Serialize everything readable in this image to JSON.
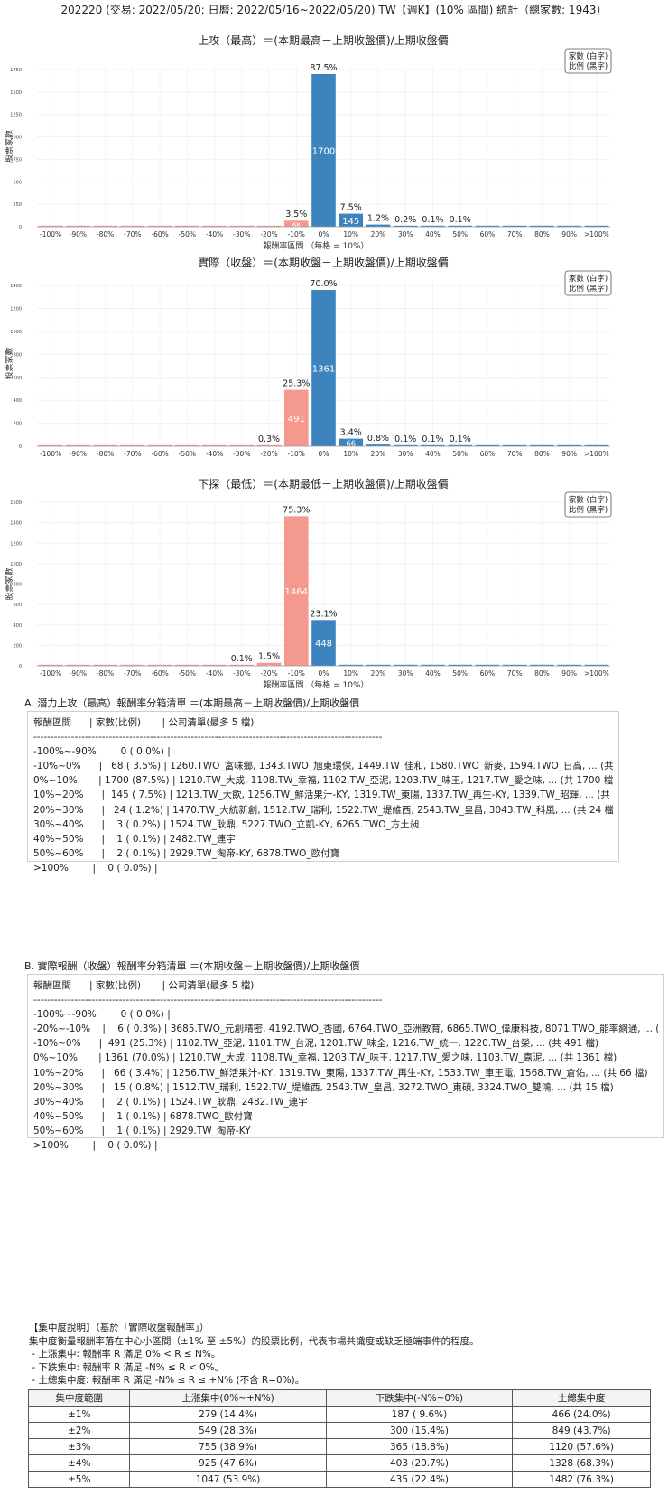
{
  "page": {
    "title": "202220 (交易: 2022/05/20; 日曆: 2022/05/16~2022/05/20) TW【週K】(10% 區間) 統計（總家數: 1943）"
  },
  "chart_data": [
    {
      "type": "bar",
      "title": "上攻（最高）＝(本期最高－上期收盤價)/上期收盤價",
      "xlabel": "報酬率區間 （每格 = 10%）",
      "ylabel": "股票家數",
      "legend": [
        "家數 (白字)",
        "比例 (黑字)"
      ],
      "legend_position": "top-right",
      "categories": [
        "-100%",
        "-90%",
        "-80%",
        "-70%",
        "-60%",
        "-50%",
        "-40%",
        "-30%",
        "-20%",
        "-10%",
        "0%",
        "10%",
        "20%",
        "30%",
        "40%",
        "50%",
        "60%",
        "70%",
        "80%",
        "90%",
        ">100%"
      ],
      "values": [
        0,
        0,
        0,
        0,
        0,
        0,
        0,
        0,
        0,
        68,
        1700,
        145,
        24,
        3,
        1,
        2,
        0,
        0,
        0,
        0,
        0
      ],
      "pct_labels": [
        "",
        "",
        "",
        "",
        "",
        "",
        "",
        "",
        "",
        "3.5%",
        "87.5%",
        "7.5%",
        "1.2%",
        "0.2%",
        "0.1%",
        "0.1%",
        "",
        "",
        "",
        "",
        ""
      ],
      "colors": {
        "negative": "#f4998d",
        "positive": "#3d84be"
      },
      "yticks": [
        0,
        250,
        500,
        750,
        1000,
        1250,
        1500,
        1750
      ],
      "ylim": [
        0,
        1790
      ],
      "grid": true
    },
    {
      "type": "bar",
      "title": "實際（收盤）＝(本期收盤－上期收盤價)/上期收盤價",
      "xlabel": "",
      "ylabel": "股票家數",
      "legend": [
        "家數 (白字)",
        "比例 (黑字)"
      ],
      "legend_position": "top-right",
      "categories": [
        "-100%",
        "-90%",
        "-80%",
        "-70%",
        "-60%",
        "-50%",
        "-40%",
        "-30%",
        "-20%",
        "-10%",
        "0%",
        "10%",
        "20%",
        "30%",
        "40%",
        "50%",
        "60%",
        "70%",
        "80%",
        "90%",
        ">100%"
      ],
      "values": [
        0,
        0,
        0,
        0,
        0,
        0,
        0,
        0,
        6,
        491,
        1361,
        66,
        15,
        2,
        1,
        1,
        0,
        0,
        0,
        0,
        0
      ],
      "pct_labels": [
        "",
        "",
        "",
        "",
        "",
        "",
        "",
        "",
        "0.3%",
        "25.3%",
        "70.0%",
        "3.4%",
        "0.8%",
        "0.1%",
        "0.1%",
        "0.1%",
        "",
        "",
        "",
        "",
        ""
      ],
      "colors": {
        "negative": "#f4998d",
        "positive": "#3d84be"
      },
      "yticks": [
        0,
        200,
        400,
        600,
        800,
        1000,
        1200,
        1400
      ],
      "ylim": [
        0,
        1440
      ],
      "grid": true
    },
    {
      "type": "bar",
      "title": "下探（最低）＝(本期最低－上期收盤價)/上期收盤價",
      "xlabel": "報酬率區間 （每格 = 10%）",
      "ylabel": "股票家數",
      "legend": [
        "家數 (白字)",
        "比例 (黑字)"
      ],
      "legend_position": "top-right",
      "categories": [
        "-100%",
        "-90%",
        "-80%",
        "-70%",
        "-60%",
        "-50%",
        "-40%",
        "-30%",
        "-20%",
        "-10%",
        "0%",
        "10%",
        "20%",
        "30%",
        "40%",
        "50%",
        "60%",
        "70%",
        "80%",
        "90%",
        ">100%"
      ],
      "values": [
        0,
        0,
        0,
        0,
        0,
        0,
        0,
        2,
        29,
        1464,
        448,
        0,
        0,
        0,
        0,
        0,
        0,
        0,
        0,
        0,
        0
      ],
      "pct_labels": [
        "",
        "",
        "",
        "",
        "",
        "",
        "",
        "0.1%",
        "1.5%",
        "75.3%",
        "23.1%",
        "",
        "",
        "",
        "",
        "",
        "",
        "",
        "",
        "",
        ""
      ],
      "colors": {
        "negative": "#f4998d",
        "positive": "#3d84be"
      },
      "yticks": [
        0,
        200,
        400,
        600,
        800,
        1000,
        1200,
        1400,
        1600
      ],
      "ylim": [
        0,
        1600
      ],
      "grid": true
    }
  ],
  "sectionA": {
    "title": "A. 潛力上攻（最高）報酬率分箱清單 ＝(本期最高－上期收盤價)/上期收盤價",
    "rows": [
      "報酬區間      | 家數(比例)       | 公司清單(最多 5 檔)",
      "------------------------------------------------------------------------------------------------------",
      "-100%~-90%   |    0 ( 0.0%) |",
      "-10%~0%      |   68 ( 3.5%) | 1260.TWO_富味鄉, 1343.TWO_旭東環保, 1449.TW_佳和, 1580.TWO_新麥, 1594.TWO_日高, ... (共 68 檔)",
      "0%~10%       | 1700 (87.5%) | 1210.TW_大成, 1108.TW_幸福, 1102.TW_亞泥, 1203.TW_味王, 1217.TW_愛之味, ... (共 1700 檔)",
      "10%~20%      |  145 ( 7.5%) | 1213.TW_大飲, 1256.TW_鮮活果汁-KY, 1319.TW_東陽, 1337.TW_再生-KY, 1339.TW_昭輝, ... (共 145 檔)",
      "20%~30%      |   24 ( 1.2%) | 1470.TW_大統新創, 1512.TW_瑞利, 1522.TW_堤維西, 2543.TW_皇昌, 3043.TW_科風, ... (共 24 檔)",
      "30%~40%      |    3 ( 0.2%) | 1524.TW_耿鼎, 5227.TWO_立凱-KY, 6265.TWO_方土昶",
      "40%~50%      |    1 ( 0.1%) | 2482.TW_連宇",
      "50%~60%      |    2 ( 0.1%) | 2929.TW_淘帝-KY, 6878.TWO_歐付寶",
      ">100%        |    0 ( 0.0%) |"
    ]
  },
  "sectionB": {
    "title": "B. 實際報酬（收盤）報酬率分箱清單 ＝(本期收盤－上期收盤價)/上期收盤價",
    "rows": [
      "報酬區間      | 家數(比例)       | 公司清單(最多 5 檔)",
      "------------------------------------------------------------------------------------------------------",
      "-100%~-90%   |    0 ( 0.0%) |",
      "-20%~-10%    |    6 ( 0.3%) | 3685.TWO_元創精密, 4192.TWO_杏國, 6764.TWO_亞洲教育, 6865.TWO_偉康科技, 8071.TWO_能率網通, ... (共 6 檔)",
      "-10%~0%      |  491 (25.3%) | 1102.TW_亞泥, 1101.TW_台泥, 1201.TW_味全, 1216.TW_統一, 1220.TW_台榮, ... (共 491 檔)",
      "0%~10%       | 1361 (70.0%) | 1210.TW_大成, 1108.TW_幸福, 1203.TW_味王, 1217.TW_愛之味, 1103.TW_嘉泥, ... (共 1361 檔)",
      "10%~20%      |   66 ( 3.4%) | 1256.TW_鮮活果汁-KY, 1319.TW_東陽, 1337.TW_再生-KY, 1533.TW_車王電, 1568.TW_倉佑, ... (共 66 檔)",
      "20%~30%      |   15 ( 0.8%) | 1512.TW_瑞利, 1522.TW_堤維西, 2543.TW_皇昌, 3272.TWO_東碩, 3324.TWO_雙鴻, ... (共 15 檔)",
      "30%~40%      |    2 ( 0.1%) | 1524.TW_耿鼎, 2482.TW_連宇",
      "40%~50%      |    1 ( 0.1%) | 6878.TWO_歐付寶",
      "50%~60%      |    1 ( 0.1%) | 2929.TW_淘帝-KY",
      ">100%        |    0 ( 0.0%) |"
    ]
  },
  "concentration": {
    "lines": [
      "【集中度說明】（基於「實際收盤報酬率」）",
      "集中度衡量報酬率落在中心小區間（±1% 至 ±5%）的股票比例，代表市場共識度或缺乏極端事件的程度。",
      " - 上漲集中: 報酬率 R 滿足 0% < R ≤ N%。",
      " - 下跌集中: 報酬率 R 滿足 -N% ≤ R < 0%。",
      " - 土總集中度: 報酬率 R 滿足 -N% ≤ R ≤ +N% (不含 R=0%)。"
    ],
    "headers": [
      "集中度範圍",
      "上漲集中(0%~+N%)",
      "下跌集中(-N%~0%)",
      "土總集中度"
    ],
    "rows": [
      [
        "±1%",
        "279 (14.4%)",
        "187 ( 9.6%)",
        "466 (24.0%)"
      ],
      [
        "±2%",
        "549 (28.3%)",
        "300 (15.4%)",
        "849 (43.7%)"
      ],
      [
        "±3%",
        "755 (38.9%)",
        "365 (18.8%)",
        "1120 (57.6%)"
      ],
      [
        "±4%",
        "925 (47.6%)",
        "403 (20.7%)",
        "1328 (68.3%)"
      ],
      [
        "±5%",
        "1047 (53.9%)",
        "435 (22.4%)",
        "1482 (76.3%)"
      ]
    ]
  }
}
